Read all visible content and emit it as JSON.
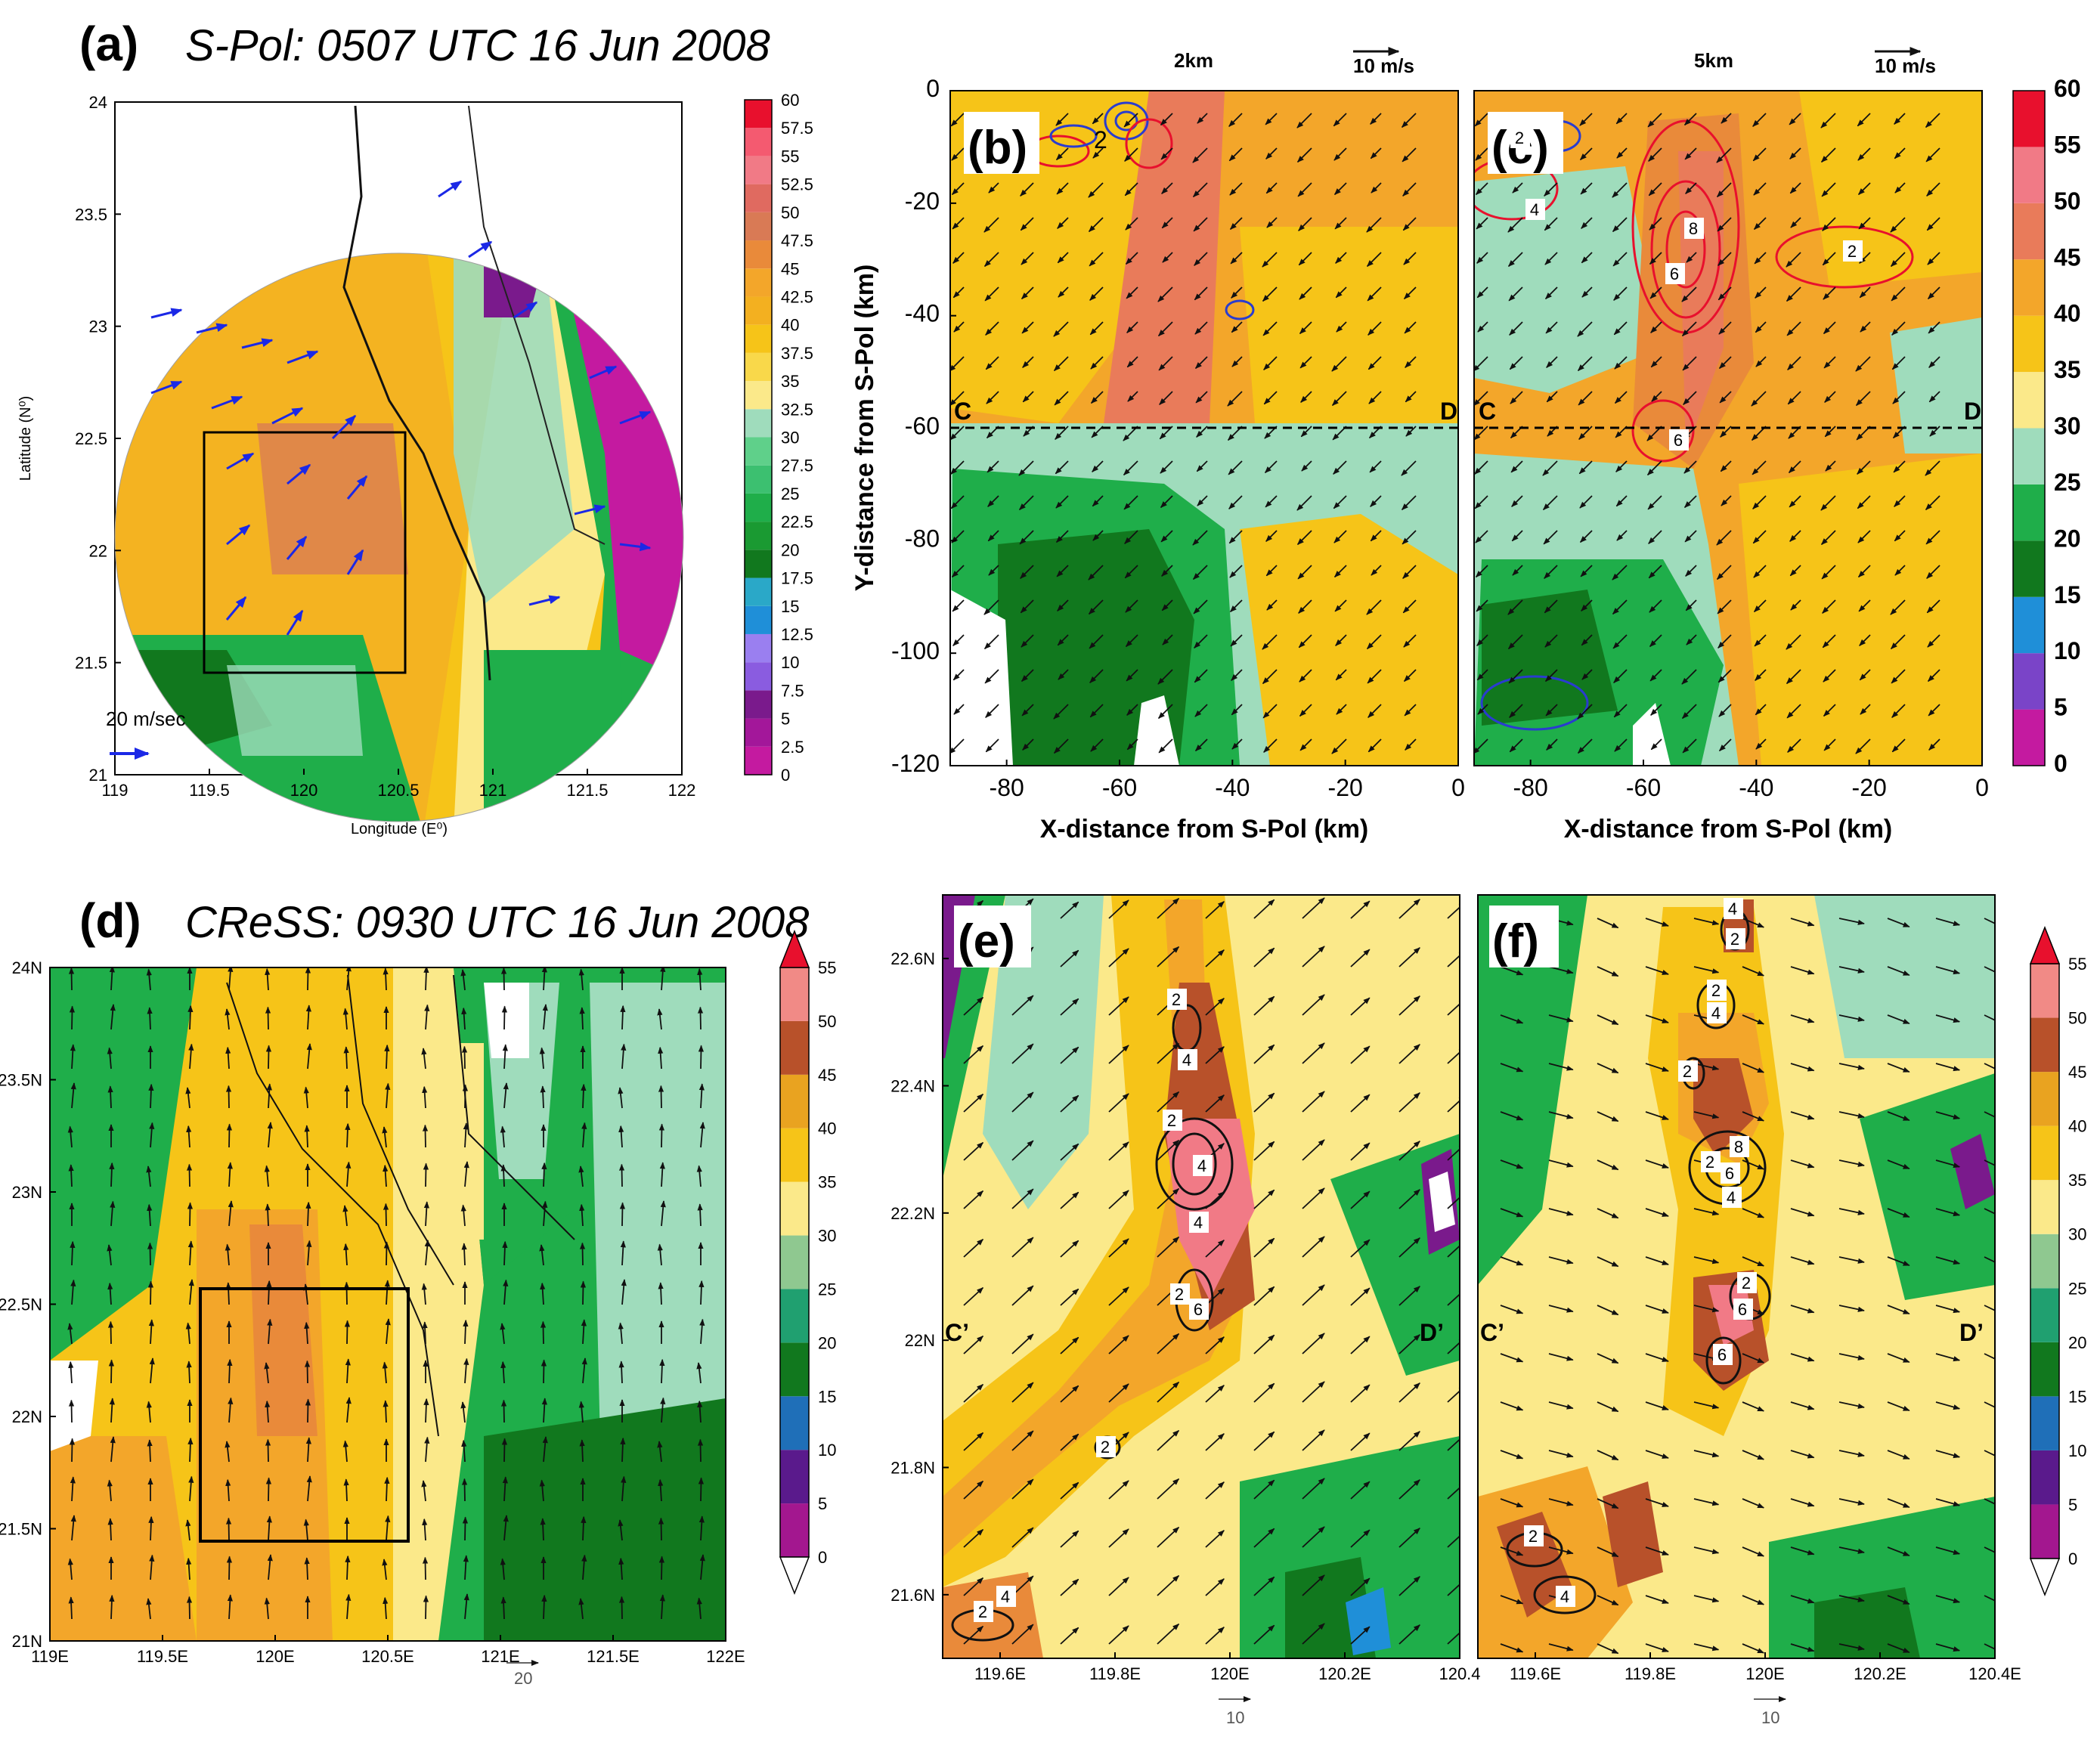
{
  "chart_data": [
    {
      "panel": "(a)",
      "type": "heatmap",
      "title": "S-Pol: 0507 UTC 16 Jun 2008",
      "xlabel": "Longitude (E⁰)",
      "ylabel": "Latitude (N⁰)",
      "xlim": [
        119,
        122
      ],
      "ylim": [
        21,
        24
      ],
      "xticks": [
        "119",
        "119.5",
        "120",
        "120.5",
        "121",
        "121.5",
        "122"
      ],
      "yticks": [
        "21",
        "21.5",
        "22",
        "22.5",
        "23",
        "23.5",
        "24"
      ],
      "colorbar": [
        "0",
        "2.5",
        "5",
        "7.5",
        "10",
        "12.5",
        "15",
        "17.5",
        "20",
        "22.5",
        "25",
        "27.5",
        "30",
        "32.5",
        "35",
        "37.5",
        "40",
        "42.5",
        "45",
        "47.5",
        "50",
        "52.5",
        "55",
        "57.5",
        "60"
      ],
      "vector_key": "20 m/sec",
      "box": {
        "lon": [
          119.57,
          120.52
        ],
        "lat": [
          21.45,
          22.52
        ]
      }
    },
    {
      "panel": "(b)",
      "type": "heatmap",
      "level": "2km",
      "vector_key": "10 m/s",
      "xlabel": "X-distance from S-Pol (km)",
      "ylabel": "Y-distance from S-Pol (km)",
      "xlim": [
        -90,
        0
      ],
      "ylim": [
        -120,
        0
      ],
      "xticks": [
        "-80",
        "-60",
        "-40",
        "-20",
        "0"
      ],
      "yticks": [
        "0",
        "-20",
        "-40",
        "-60",
        "-80",
        "-100",
        "-120"
      ],
      "section": {
        "start": "C",
        "end": "D",
        "y": -60
      },
      "contour_label": "2"
    },
    {
      "panel": "(c)",
      "type": "heatmap",
      "level": "5km",
      "vector_key": "10 m/s",
      "xlabel": "X-distance from S-Pol (km)",
      "xlim": [
        -90,
        0
      ],
      "ylim": [
        -120,
        0
      ],
      "xticks": [
        "-80",
        "-60",
        "-40",
        "-20",
        "0"
      ],
      "section": {
        "start": "C",
        "end": "D",
        "y": -60
      },
      "colorbar": [
        "0",
        "5",
        "10",
        "15",
        "20",
        "25",
        "30",
        "35",
        "40",
        "45",
        "50",
        "55",
        "60"
      ],
      "contour_labels": [
        "2",
        "4",
        "6",
        "8"
      ]
    },
    {
      "panel": "(d)",
      "type": "heatmap",
      "title": "CReSS: 0930 UTC 16 Jun 2008",
      "xlim": [
        119,
        122
      ],
      "ylim": [
        21,
        24
      ],
      "xticks": [
        "119E",
        "119.5E",
        "120E",
        "120.5E",
        "121E",
        "121.5E",
        "122E"
      ],
      "yticks": [
        "21N",
        "21.5N",
        "22N",
        "22.5N",
        "23N",
        "23.5N",
        "24N"
      ],
      "colorbar": [
        "0",
        "5",
        "10",
        "15",
        "20",
        "25",
        "30",
        "35",
        "40",
        "45",
        "50",
        "55"
      ],
      "vector_key": "20",
      "box": {
        "lon": [
          119.55,
          120.52
        ],
        "lat": [
          21.45,
          22.56
        ]
      }
    },
    {
      "panel": "(e)",
      "type": "heatmap",
      "xlim": [
        119.5,
        120.4
      ],
      "ylim": [
        21.5,
        22.7
      ],
      "xticks": [
        "119.6E",
        "119.8E",
        "120E",
        "120.2E",
        "120.4"
      ],
      "yticks": [
        "21.6N",
        "21.8N",
        "22N",
        "22.2N",
        "22.4N",
        "22.6N"
      ],
      "section": {
        "start": "C’",
        "end": "D’",
        "lat": 21.98
      },
      "vector_key": "10",
      "contour_labels": [
        "2",
        "4",
        "6"
      ]
    },
    {
      "panel": "(f)",
      "type": "heatmap",
      "xlim": [
        119.5,
        120.4
      ],
      "ylim": [
        21.5,
        22.7
      ],
      "xticks": [
        "119.6E",
        "119.8E",
        "120E",
        "120.2E",
        "120.4E"
      ],
      "section": {
        "start": "C’",
        "end": "D’",
        "lat": 21.98
      },
      "vector_key": "10",
      "colorbar": [
        "0",
        "5",
        "10",
        "15",
        "20",
        "25",
        "30",
        "35",
        "40",
        "45",
        "50",
        "55"
      ],
      "contour_labels": [
        "2",
        "4",
        "6",
        "8"
      ]
    }
  ],
  "colors": {
    "magenta": "#c41aa0",
    "purple": "#7a1a8c",
    "blue": "#1f8fd8",
    "darkgreen": "#11781e",
    "green": "#1fae4a",
    "lightgreen": "#9fdcbc",
    "paleyellow": "#fbe98a",
    "yellow": "#f6c418",
    "orange": "#f3a62a",
    "darkorange": "#e98a3a",
    "brown": "#b8512a",
    "pink": "#f17a86",
    "red": "#e8102d",
    "vector_blue": "#1b28e6",
    "contour_red": "#e8102d",
    "contour_blue": "#2a3ccf"
  }
}
